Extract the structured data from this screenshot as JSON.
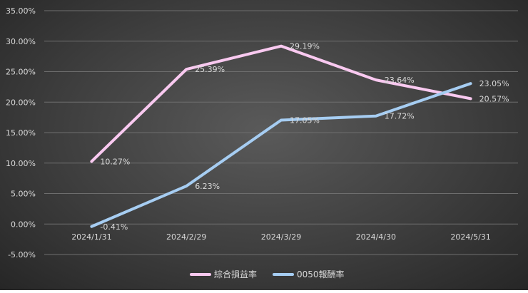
{
  "chart_data": {
    "type": "line",
    "title": "",
    "xlabel": "",
    "ylabel": "",
    "categories": [
      "2024/1/31",
      "2024/2/29",
      "2024/3/29",
      "2024/4/30",
      "2024/5/31"
    ],
    "ylim": [
      -5,
      35
    ],
    "y_ticks": [
      {
        "value": 35,
        "label": "35.00%"
      },
      {
        "value": 30,
        "label": "30.00%"
      },
      {
        "value": 25,
        "label": "25.00%"
      },
      {
        "value": 20,
        "label": "20.00%"
      },
      {
        "value": 15,
        "label": "15.00%"
      },
      {
        "value": 10,
        "label": "10.00%"
      },
      {
        "value": 5,
        "label": "5.00%"
      },
      {
        "value": 0,
        "label": "0.00%"
      },
      {
        "value": -5,
        "label": "-5.00%"
      }
    ],
    "grid": true,
    "legend_position": "bottom",
    "series": [
      {
        "name": "綜合損益率",
        "color": "#f9c9f0",
        "values": [
          10.27,
          25.39,
          29.19,
          23.64,
          20.57
        ],
        "labels": [
          "10.27%",
          "25.39%",
          "29.19%",
          "23.64%",
          "20.57%"
        ]
      },
      {
        "name": "0050報酬率",
        "color": "#a6cdf2",
        "values": [
          -0.41,
          6.23,
          17.05,
          17.72,
          23.05
        ],
        "labels": [
          "-0.41%",
          "6.23%",
          "17.05%",
          "17.72%",
          "23.05%"
        ]
      }
    ]
  }
}
